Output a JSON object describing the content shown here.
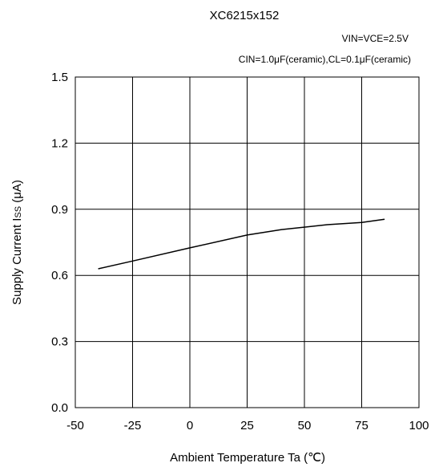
{
  "chart_data": {
    "type": "line",
    "title": "XC6215x152",
    "conditions": [
      "VIN=VCE=2.5V",
      "CIN=1.0μF(ceramic),CL=0.1μF(ceramic)"
    ],
    "xlabel": "Ambient Temperature Ta (℃)",
    "ylabel": "Supply Current  I",
    "ylabel_sub": "SS",
    "ylabel_unit": " (μA)",
    "xlim": [
      -50,
      100
    ],
    "ylim": [
      0.0,
      1.5
    ],
    "x_ticks": [
      -50,
      -25,
      0,
      25,
      50,
      75,
      100
    ],
    "x_tick_labels": [
      "-50",
      "-25",
      "0",
      "25",
      "50",
      "75",
      "100"
    ],
    "y_ticks": [
      0.0,
      0.3,
      0.6,
      0.9,
      1.2,
      1.5
    ],
    "y_tick_labels": [
      "0.0",
      "0.3",
      "0.6",
      "0.9",
      "1.2",
      "1.5"
    ],
    "grid": true,
    "series": [
      {
        "x": [
          -40,
          -25,
          0,
          25,
          40,
          60,
          75,
          85
        ],
        "values": [
          0.63,
          0.665,
          0.725,
          0.783,
          0.808,
          0.83,
          0.84,
          0.855
        ]
      }
    ]
  }
}
